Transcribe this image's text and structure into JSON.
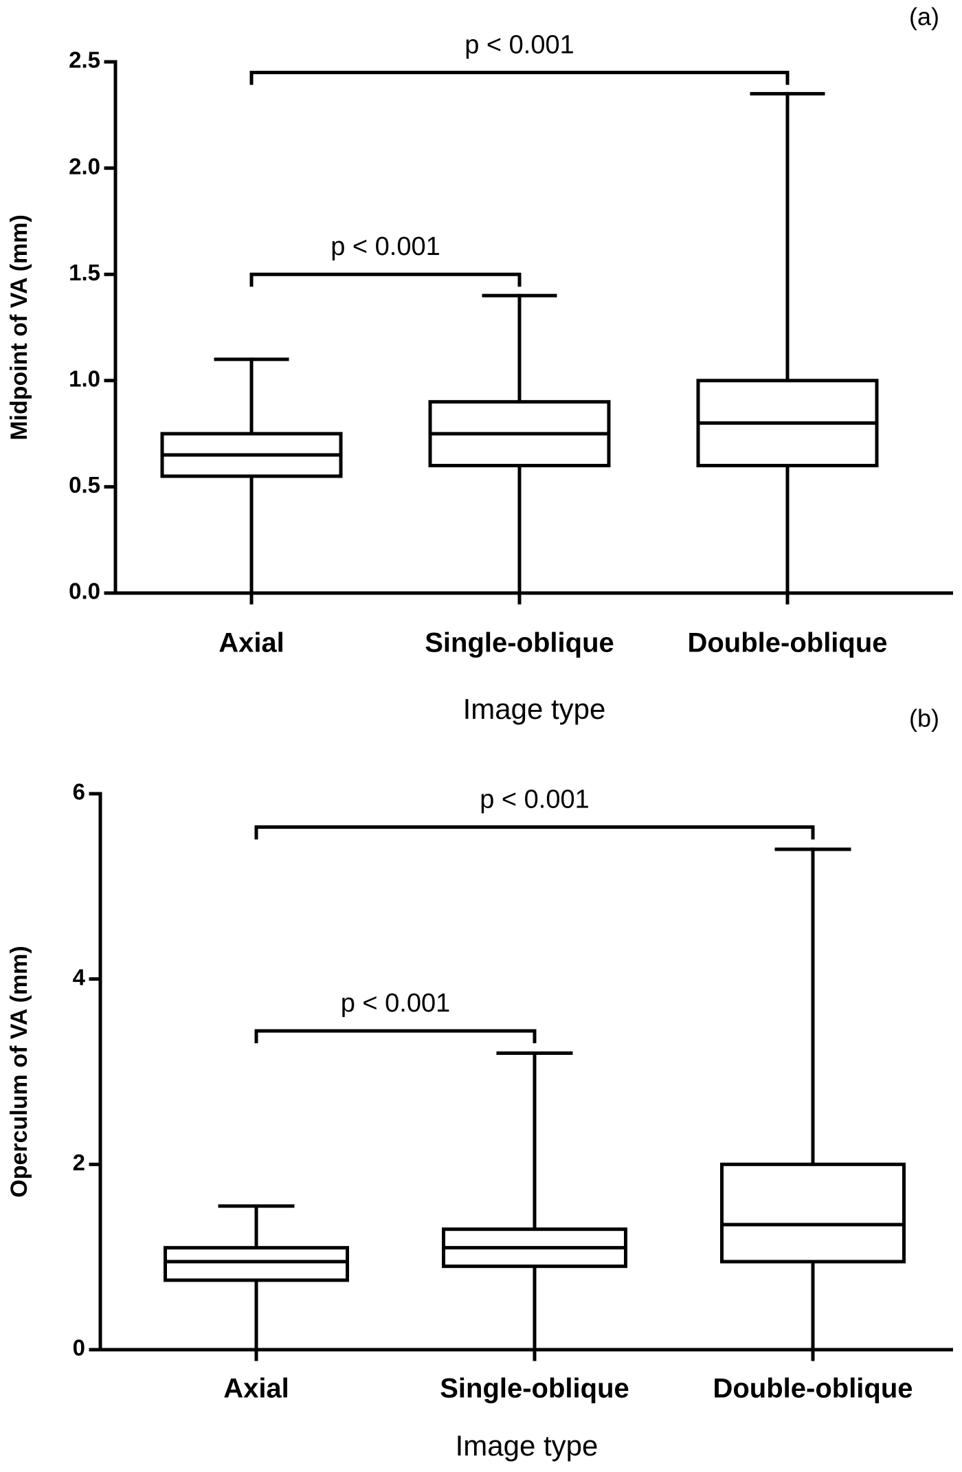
{
  "chart_data": [
    {
      "type": "box",
      "panel_label": "(a)",
      "x_label": "Image type",
      "y_label": "Midpoint of  VA (mm)",
      "categories": [
        "Axial",
        "Single-oblique",
        "Double-oblique"
      ],
      "boxes": [
        {
          "min": 0,
          "q1": 0.55,
          "median": 0.65,
          "q3": 0.75,
          "max": 1.1
        },
        {
          "min": 0,
          "q1": 0.6,
          "median": 0.75,
          "q3": 0.9,
          "max": 1.4
        },
        {
          "min": 0,
          "q1": 0.6,
          "median": 0.8,
          "q3": 1.0,
          "max": 2.35
        }
      ],
      "ylim": [
        0,
        2.5
      ],
      "yticks": [
        {
          "value": 0,
          "label": "0.0"
        },
        0.5,
        {
          "value": 1,
          "label": "1.0"
        },
        1.5,
        {
          "value": 2,
          "label": "2.0"
        },
        2.5
      ],
      "annotations": [
        {
          "text": "p < 0.001",
          "between": [
            0,
            2
          ]
        },
        {
          "text": "p < 0.001",
          "between": [
            0,
            1
          ]
        }
      ]
    },
    {
      "type": "box",
      "panel_label": "(b)",
      "x_label": "Image type",
      "y_label": "Operculum of VA (mm)",
      "categories": [
        "Axial",
        "Single-oblique",
        "Double-oblique"
      ],
      "boxes": [
        {
          "min": 0,
          "q1": 0.75,
          "median": 0.95,
          "q3": 1.1,
          "max": 1.55
        },
        {
          "min": 0,
          "q1": 0.9,
          "median": 1.1,
          "q3": 1.3,
          "max": 3.2
        },
        {
          "min": 0,
          "q1": 0.95,
          "median": 1.35,
          "q3": 2.0,
          "max": 5.4
        }
      ],
      "ylim": [
        0,
        6
      ],
      "yticks": [
        0,
        2,
        4,
        6
      ],
      "annotations": [
        {
          "text": "p < 0.001",
          "between": [
            0,
            2
          ]
        },
        {
          "text": "p < 0.001",
          "between": [
            0,
            1
          ]
        }
      ]
    }
  ]
}
